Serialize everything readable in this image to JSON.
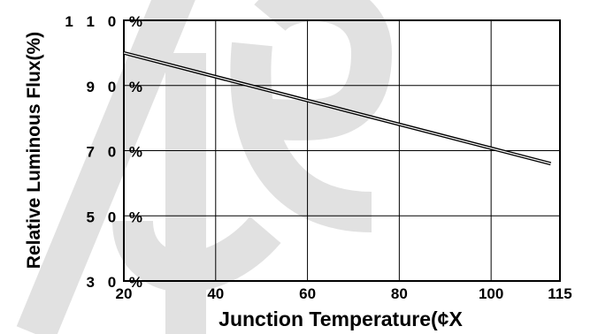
{
  "chart_data": {
    "type": "line",
    "xlabel": "Junction Temperature(¢X",
    "ylabel": "Relative Luminous Flux(%)",
    "x_ticks": [
      20,
      40,
      60,
      80,
      100,
      115
    ],
    "y_ticks": [
      "1 1 0 %",
      "9 0 %",
      "7 0 %",
      "5 0 %",
      "3 0 %"
    ],
    "xlim": [
      20,
      115
    ],
    "ylim": [
      30,
      110
    ],
    "grid": true,
    "series": [
      {
        "x": [
          20,
          113
        ],
        "y": [
          100,
          66
        ]
      }
    ],
    "colors": {
      "line": "#000000",
      "grid": "#000000",
      "watermark": "#dcdcdc"
    }
  }
}
